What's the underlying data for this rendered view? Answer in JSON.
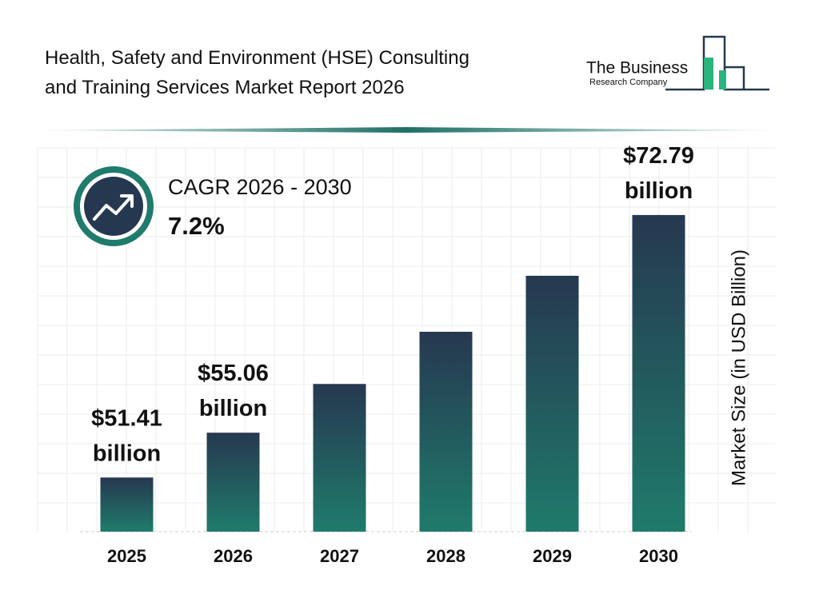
{
  "chart_data": {
    "type": "bar",
    "title": [
      "Health, Safety and Environment (HSE) Consulting",
      "and Training Services Market Report 2026"
    ],
    "categories": [
      "2025",
      "2026",
      "2027",
      "2028",
      "2029",
      "2030"
    ],
    "values": [
      51.41,
      55.06,
      59.03,
      63.28,
      67.84,
      72.79
    ],
    "value_labels": [
      "$51.41 billion",
      "$55.06 billion",
      null,
      null,
      null,
      "$72.79 billion"
    ],
    "ylabel": "Market Size (in USD Billion)",
    "ylim": [
      47,
      75
    ],
    "cagr_label": "CAGR 2026 - 2030",
    "cagr_value": "7.2%"
  },
  "logo": {
    "line1": "The Business",
    "line2": "Research Company"
  }
}
